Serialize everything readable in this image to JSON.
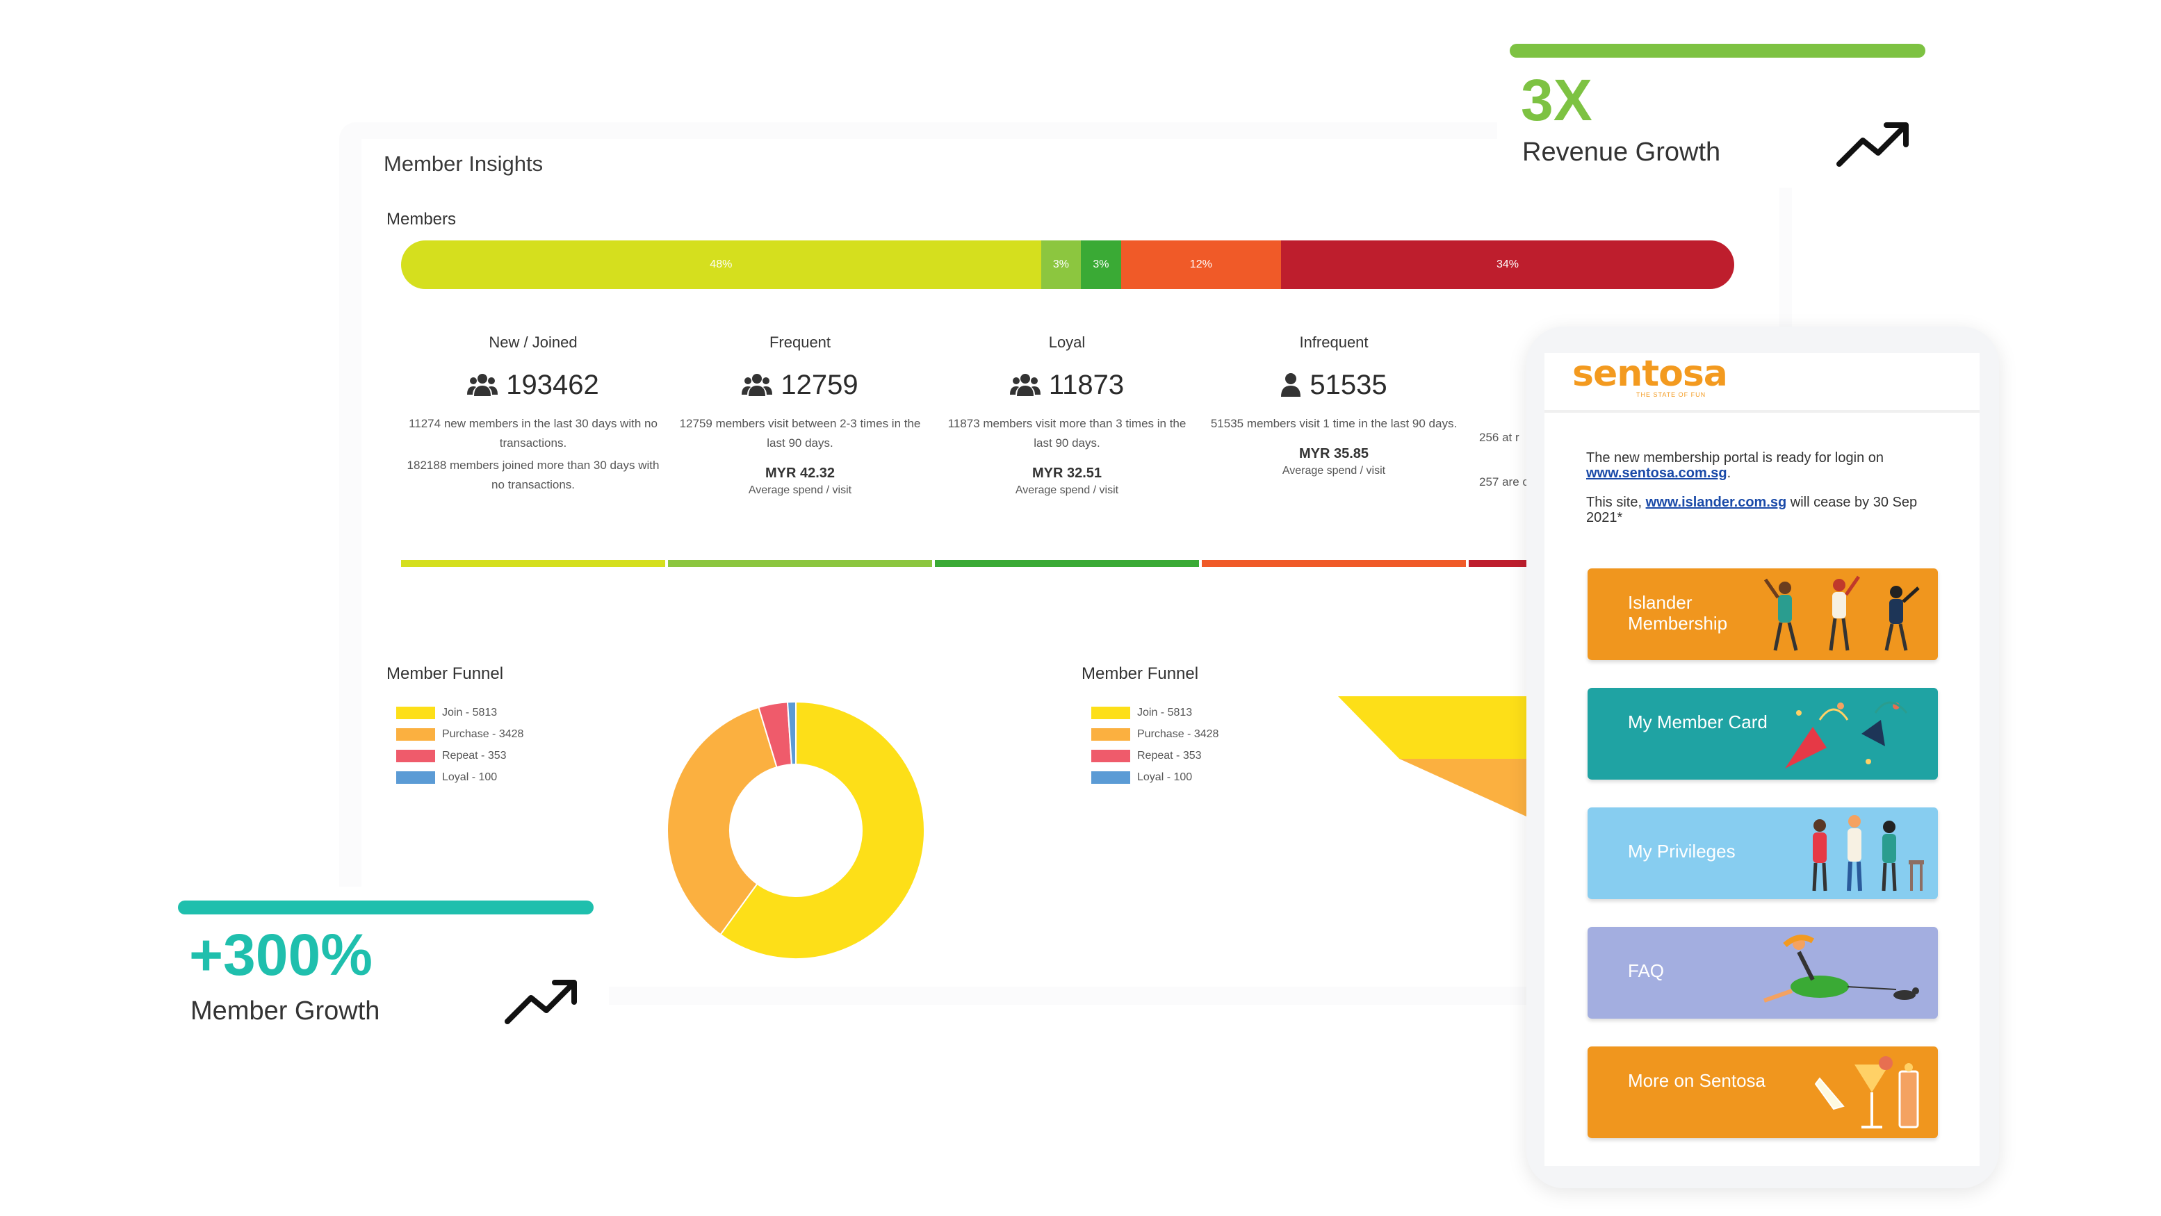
{
  "dashboard": {
    "title": "Member Insights",
    "members_label": "Members",
    "segments": [
      {
        "label": "48%",
        "share": 48,
        "color": "#d5df1e"
      },
      {
        "label": "3%",
        "share": 3,
        "color": "#8cc63f"
      },
      {
        "label": "3%",
        "share": 3,
        "color": "#3aaa35"
      },
      {
        "label": "12%",
        "share": 12,
        "color": "#f05a28"
      },
      {
        "label": "34%",
        "share": 34,
        "color": "#be1e2d"
      }
    ],
    "stats": [
      {
        "title": "New / Joined",
        "count": "193462",
        "icon": "users-icon",
        "desc1": "11274 new members in the last 30 days with no transactions.",
        "desc2": "182188 members joined more than 30 days with no transactions.",
        "spend": "",
        "spend_label": "",
        "color": "#d5df1e"
      },
      {
        "title": "Frequent",
        "count": "12759",
        "icon": "users-icon",
        "desc1": "12759 members visit between 2-3 times in the last 90 days.",
        "desc2": "",
        "spend": "MYR 42.32",
        "spend_label": "Average spend / visit",
        "color": "#8cc63f"
      },
      {
        "title": "Loyal",
        "count": "11873",
        "icon": "users-icon",
        "desc1": "11873 members visit more than 3 times in the last 90 days.",
        "desc2": "",
        "spend": "MYR 32.51",
        "spend_label": "Average spend / visit",
        "color": "#3aaa35"
      },
      {
        "title": "Infrequent",
        "count": "51535",
        "icon": "user-icon",
        "desc1": "51535 members visit 1 time in the last 90 days.",
        "desc2": "",
        "spend": "MYR 35.85",
        "spend_label": "Average spend / visit",
        "color": "#f05a28"
      },
      {
        "title": "",
        "count": "",
        "icon": "",
        "desc1": "256 at r",
        "desc2": "257 are c",
        "spend": "",
        "spend_label": "",
        "color": "#be1e2d"
      }
    ],
    "funnels": [
      {
        "title": "Member Funnel",
        "legend": [
          "Join - 5813",
          "Purchase - 3428",
          "Repeat - 353",
          "Loyal - 100"
        ]
      },
      {
        "title": "Member Funnel",
        "legend": [
          "Join - 5813",
          "Purchase - 3428",
          "Repeat - 353",
          "Loyal - 100"
        ]
      }
    ],
    "funnel_colors": [
      "#fddf18",
      "#fbb040",
      "#ef5b6b",
      "#5b9bd5"
    ]
  },
  "chart_data": [
    {
      "type": "pie",
      "title": "Member Funnel",
      "categories": [
        "Join",
        "Purchase",
        "Repeat",
        "Loyal"
      ],
      "values": [
        5813,
        3428,
        353,
        100
      ],
      "donut": true
    },
    {
      "type": "bar",
      "title": "Member Funnel",
      "subtype": "funnel",
      "categories": [
        "Join",
        "Purchase",
        "Repeat",
        "Loyal"
      ],
      "values": [
        5813,
        3428,
        353,
        100
      ]
    }
  ],
  "revenue": {
    "value": "3X",
    "label": "Revenue Growth",
    "icon": "trend-up-icon"
  },
  "member_growth": {
    "value": "+300%",
    "label": "Member Growth",
    "icon": "trend-up-icon"
  },
  "phone": {
    "logo": "sentosa",
    "tagline": "THE STATE OF FUN",
    "notice1": "The new membership portal is ready for login on ",
    "notice1_link": "www.sentosa.com.sg",
    "notice1_end": ".",
    "notice2": "This site, ",
    "notice2_link": "www.islander.com.sg",
    "notice2_end": " will cease by 30 Sep 2021*",
    "tiles": [
      {
        "label": "Islander Membership",
        "color": "#f0961e",
        "icon": "dancing-people-icon"
      },
      {
        "label": "My Member Card",
        "color": "#1fa3a3",
        "icon": "party-popper-icon"
      },
      {
        "label": "My Privileges",
        "color": "#87cdf0",
        "icon": "people-toast-icon"
      },
      {
        "label": "FAQ",
        "color": "#a3aee0",
        "icon": "running-woman-icon"
      },
      {
        "label": "More on Sentosa",
        "color": "#f0961e",
        "icon": "cocktails-icon"
      }
    ]
  }
}
